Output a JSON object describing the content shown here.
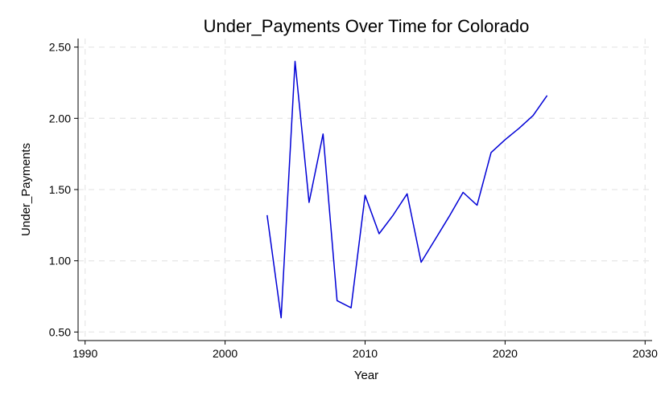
{
  "chart_data": {
    "type": "line",
    "title": "Under_Payments Over Time for Colorado",
    "xlabel": "Year",
    "ylabel": "Under_Payments",
    "xlim": [
      1989.5,
      2030.5
    ],
    "ylim": [
      0.44,
      2.56
    ],
    "xticks": [
      1990,
      2000,
      2010,
      2020,
      2030
    ],
    "xtick_labels": [
      "1990",
      "2000",
      "2010",
      "2020",
      "2030"
    ],
    "yticks": [
      0.5,
      1.0,
      1.5,
      2.0,
      2.5
    ],
    "ytick_labels": [
      "0.50",
      "1.00",
      "1.50",
      "2.00",
      "2.50"
    ],
    "grid": true,
    "line_color": "#0000d6",
    "x": [
      2003,
      2004,
      2005,
      2006,
      2007,
      2008,
      2009,
      2010,
      2011,
      2012,
      2013,
      2014,
      2015,
      2016,
      2017,
      2018,
      2019,
      2020,
      2021,
      2022,
      2023
    ],
    "y": [
      1.32,
      0.6,
      2.4,
      1.41,
      1.89,
      0.72,
      0.67,
      1.46,
      1.19,
      1.32,
      1.47,
      0.99,
      1.15,
      1.31,
      1.48,
      1.39,
      1.76,
      1.85,
      1.93,
      2.02,
      2.16
    ]
  }
}
